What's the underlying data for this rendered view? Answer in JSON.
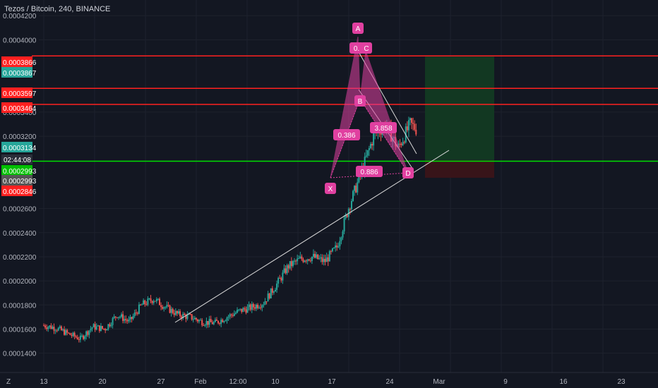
{
  "title": "Tezos / Bitcoin, 240, BINANCE",
  "colors": {
    "background": "#131722",
    "grid": "#1e222d",
    "up": "#26a69a",
    "down": "#ef5350",
    "pattern": "#e040a0",
    "hline_red": "#ff2020",
    "hline_green": "#00e000",
    "trend": "#d8d8d8",
    "target_zone": "#123a23",
    "stop_zone": "#3a1419"
  },
  "time_badge": "02:44:08",
  "chart_data": {
    "type": "candlestick",
    "ylim": [
      0.000124,
      0.000433
    ],
    "y_ticks": [
      "0.0001400",
      "0.0001600",
      "0.0001800",
      "0.0002000",
      "0.0002200",
      "0.0002400",
      "0.0002600",
      "0.0003200",
      "0.0003400",
      "0.0004000",
      "0.0004200"
    ],
    "x_ticks": [
      "13",
      "20",
      "27",
      "Feb",
      "12:00",
      "10",
      "17",
      "24",
      "Mar",
      "9",
      "16",
      "23"
    ],
    "price_tags": [
      {
        "label": "0.0003866",
        "value": 0.0003866,
        "color": "#ff2020"
      },
      {
        "label": "0.0003867",
        "value": 0.0003867,
        "color": "#26a69a"
      },
      {
        "label": "0.0003597",
        "value": 0.0003597,
        "color": "#ff2020"
      },
      {
        "label": "0.0003464",
        "value": 0.0003464,
        "color": "#ff2020"
      },
      {
        "label": "0.0003134",
        "value": 0.0003134,
        "color": "#26a69a"
      },
      {
        "label": "0.0002993",
        "value": 0.0002993,
        "color": "#00c000"
      },
      {
        "label": "0.0002993",
        "value": 0.0002993,
        "color": "#555555"
      },
      {
        "label": "0.0002846",
        "value": 0.0002846,
        "color": "#ff2020"
      }
    ],
    "horizontal_lines": [
      {
        "value": 0.0003866,
        "color": "#ff2020"
      },
      {
        "value": 0.0003597,
        "color": "#ff2020"
      },
      {
        "value": 0.0003464,
        "color": "#ff2020"
      },
      {
        "value": 0.0002993,
        "color": "#00e000"
      }
    ],
    "price_path": [
      [
        0,
        0.000163
      ],
      [
        1,
        0.000161
      ],
      [
        2,
        0.000156
      ],
      [
        3,
        0.000152
      ],
      [
        4,
        0.000162
      ],
      [
        5,
        0.00016
      ],
      [
        6,
        0.000172
      ],
      [
        7,
        0.000166
      ],
      [
        8,
        0.00018
      ],
      [
        9,
        0.000185
      ],
      [
        10,
        0.000178
      ],
      [
        11,
        0.000172
      ],
      [
        12,
        0.00017
      ],
      [
        13,
        0.000166
      ],
      [
        14,
        0.000165
      ],
      [
        15,
        0.00017
      ],
      [
        16,
        0.000175
      ],
      [
        17,
        0.000178
      ],
      [
        18,
        0.000182
      ],
      [
        19,
        0.000196
      ],
      [
        20,
        0.000212
      ],
      [
        21,
        0.000218
      ],
      [
        22,
        0.00022
      ],
      [
        23,
        0.000216
      ],
      [
        24,
        0.000228
      ],
      [
        25,
        0.000262
      ],
      [
        26,
        0.00029
      ],
      [
        27,
        0.00032
      ],
      [
        28,
        0.00033
      ],
      [
        29,
        0.00031
      ],
      [
        30,
        0.00033
      ],
      [
        31,
        0.000322
      ],
      [
        32,
        0.0003
      ],
      [
        33,
        0.000365
      ],
      [
        34,
        0.00039
      ],
      [
        35,
        0.000365
      ],
      [
        36,
        0.00035
      ],
      [
        37,
        0.00036
      ],
      [
        38,
        0.00033
      ],
      [
        39,
        0.00031
      ]
    ],
    "pattern": {
      "points": [
        {
          "name": "X",
          "t": 17.8,
          "v": 0.0003028
        },
        {
          "name": "A",
          "t": 20.3,
          "v": 0.0003905
        },
        {
          "name": "B",
          "t": 20.7,
          "v": 0.0003575
        },
        {
          "name": "C",
          "t": 21.6,
          "v": 0.000387
        },
        {
          "name": "D",
          "t": 26.3,
          "v": 0.000295
        }
      ],
      "ratios": [
        {
          "label": "0.386",
          "t": 18.9,
          "v": 0.0003262
        },
        {
          "label": "0.886",
          "t": 21.9,
          "v": 0.0002955
        },
        {
          "label": "3.858",
          "t": 23.9,
          "v": 0.000329
        },
        {
          "label": "0.",
          "t": 20.3,
          "v": 0.00039
        }
      ]
    },
    "trendlines": [
      [
        [
          28.0,
          0.000163
        ],
        [
          31.2,
          0.000198
        ],
        [
          29.5,
          0.000181
        ],
        [
          35.0,
          0.000243
        ]
      ],
      [
        [
          20.3,
          0.000394
        ],
        [
          26.8,
          0.000315
        ]
      ],
      [
        [
          20.7,
          0.000357
        ],
        [
          26.2,
          0.000296
        ]
      ]
    ],
    "position": {
      "entry": 0.0003,
      "target": 0.000386,
      "stop": 0.0002855
    }
  }
}
